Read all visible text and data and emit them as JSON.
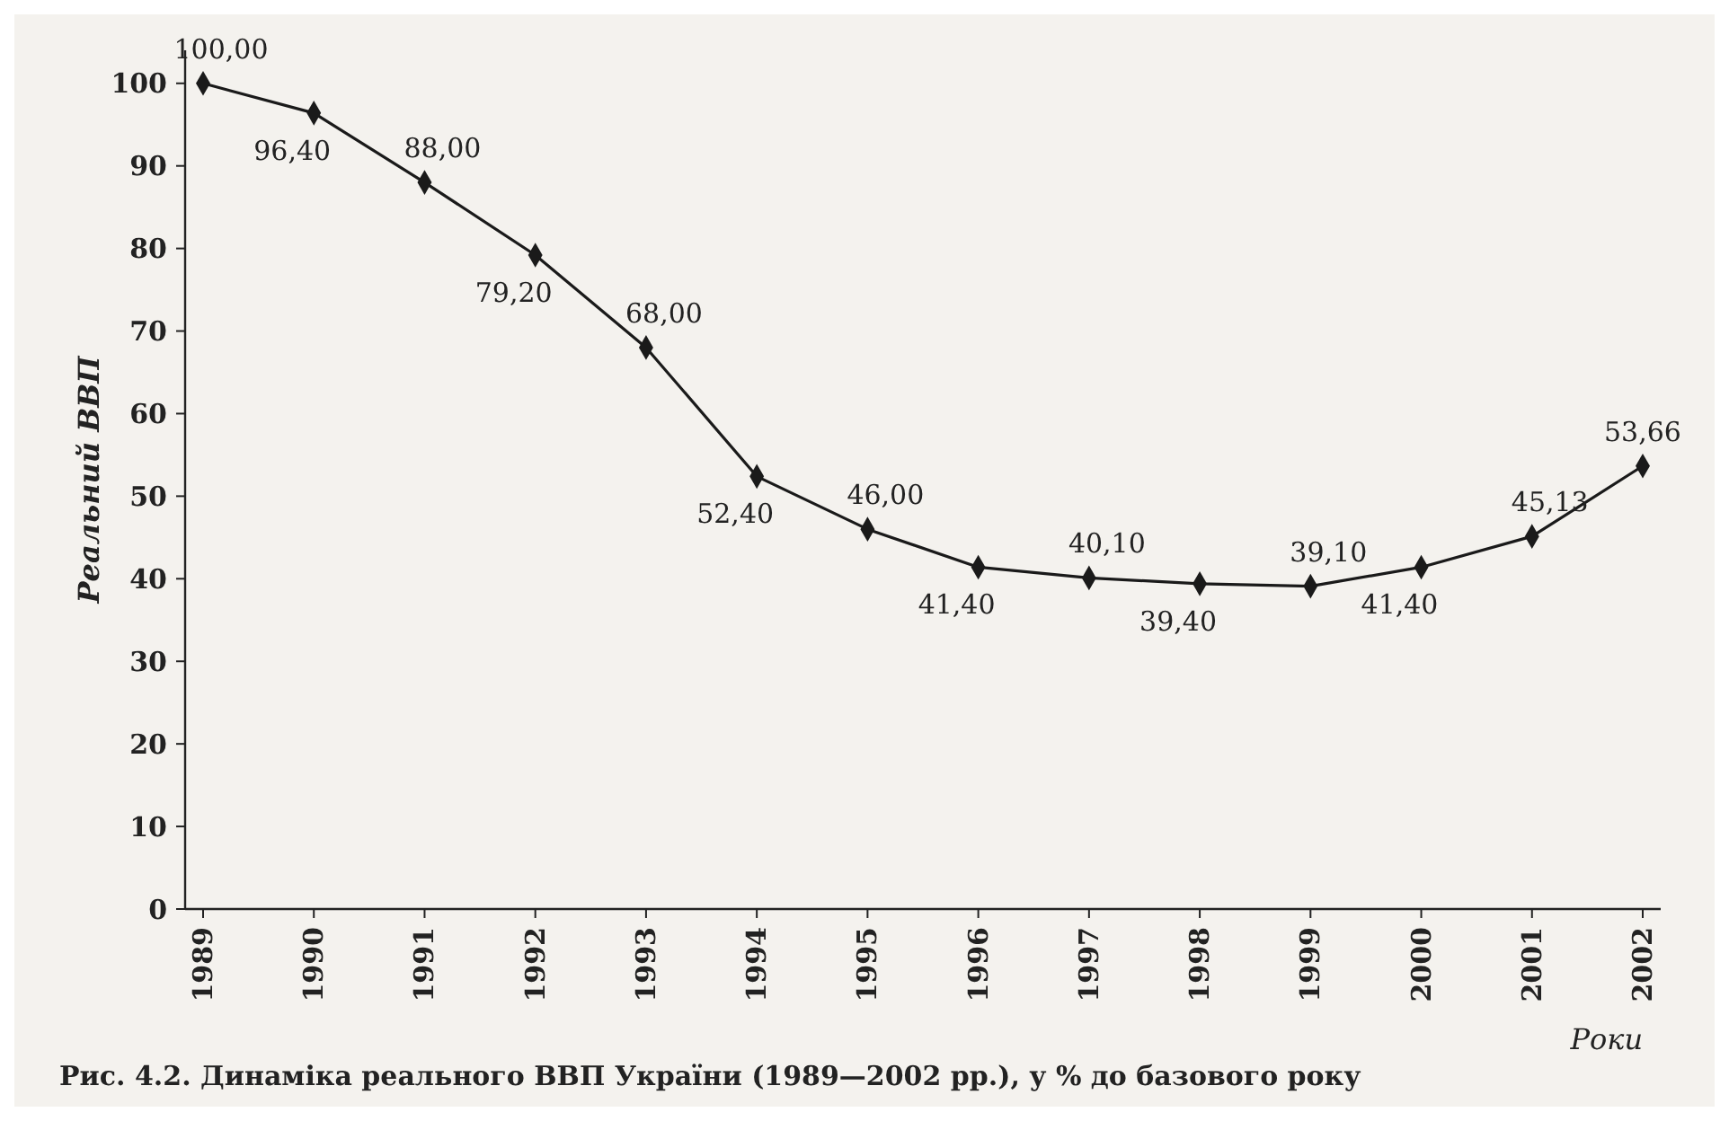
{
  "chart_data": {
    "type": "line",
    "title": "Рис. 4.2. Динаміка реального ВВП України (1989—2002 рр.), у % до базового року",
    "xlabel": "Роки",
    "ylabel": "Реальний ВВП",
    "categories": [
      "1989",
      "1990",
      "1991",
      "1992",
      "1993",
      "1994",
      "1995",
      "1996",
      "1997",
      "1998",
      "1999",
      "2000",
      "2001",
      "2002"
    ],
    "series": [
      {
        "color": "#1a1a1a",
        "values": [
          100.0,
          96.4,
          88.0,
          79.2,
          68.0,
          52.4,
          46.0,
          41.4,
          40.1,
          39.4,
          39.1,
          41.4,
          45.13,
          53.66
        ],
        "value_labels": [
          "100,00",
          "96,40",
          "88,00",
          "79,20",
          "68,00",
          "52,40",
          "46,00",
          "41,40",
          "40,10",
          "39,40",
          "39,10",
          "41,40",
          "45,13",
          "53,66"
        ]
      }
    ],
    "ylim": [
      0,
      104
    ],
    "yticks": [
      0,
      10,
      20,
      30,
      40,
      50,
      60,
      70,
      80,
      90,
      100
    ],
    "marker": "diamond",
    "line_style": "solid"
  }
}
